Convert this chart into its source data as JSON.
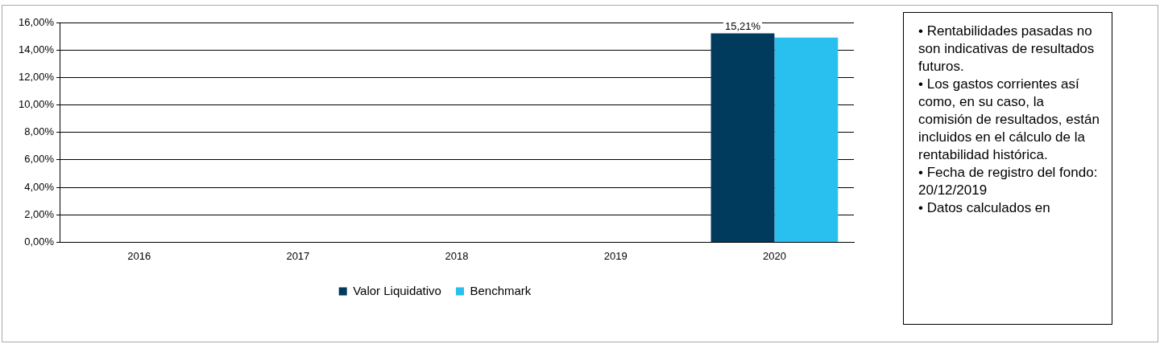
{
  "chart_data": {
    "type": "bar",
    "categories": [
      "2016",
      "2017",
      "2018",
      "2019",
      "2020"
    ],
    "series": [
      {
        "name": "Valor Liquidativo",
        "color": "#003a5d",
        "values": [
          null,
          null,
          null,
          null,
          15.21
        ],
        "value_labels": [
          null,
          null,
          null,
          null,
          "15,21%"
        ]
      },
      {
        "name": "Benchmark",
        "color": "#29bfef",
        "values": [
          null,
          null,
          null,
          null,
          14.9
        ]
      }
    ],
    "ylim": [
      0,
      16
    ],
    "yticks": [
      {
        "value": 0,
        "label": "0,00%"
      },
      {
        "value": 2,
        "label": "2,00%"
      },
      {
        "value": 4,
        "label": "4,00%"
      },
      {
        "value": 6,
        "label": "6,00%"
      },
      {
        "value": 8,
        "label": "8,00%"
      },
      {
        "value": 10,
        "label": "10,00%"
      },
      {
        "value": 12,
        "label": "12,00%"
      },
      {
        "value": 14,
        "label": "14,00%"
      },
      {
        "value": 16,
        "label": "16,00%"
      }
    ],
    "grid": "y",
    "legend": "bottom",
    "annotations": [
      "• Rentabilidades pasadas no son indicativas de resultados futuros.",
      "• Los gastos corrientes así como, en su caso, la comisión de resultados, están incluidos en el cálculo de la rentabilidad histórica.",
      "• Fecha de registro del fondo: 20/12/2019",
      "• Datos calculados en"
    ]
  }
}
